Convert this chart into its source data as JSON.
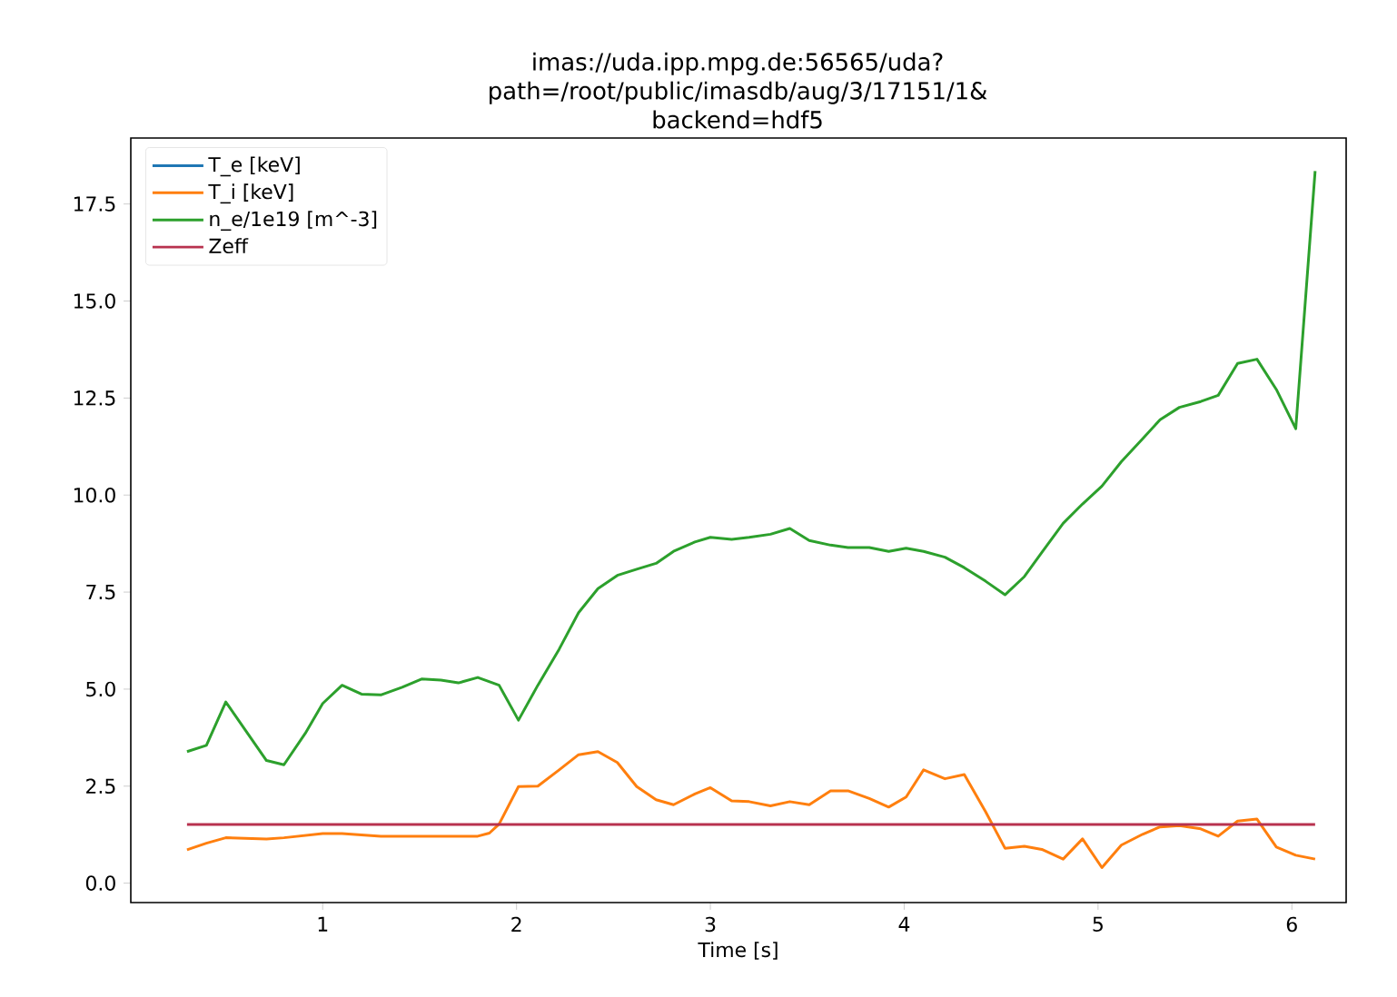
{
  "chart_data": {
    "type": "line",
    "title": "imas://uda.ipp.mpg.de:56565/uda?\npath=/root/public/imasdb/aug/3/17151/1&\nbackend=hdf5",
    "xlabel": "Time [s]",
    "xlim": [
      0.01,
      6.28
    ],
    "xticks": [
      1,
      2,
      3,
      4,
      5,
      6
    ],
    "ylim": [
      -0.5,
      19.2
    ],
    "yticks": [
      {
        "value": 0,
        "label": "0.0"
      },
      {
        "value": 2.5,
        "label": "2.5"
      },
      {
        "value": 5,
        "label": "5.0"
      },
      {
        "value": 7.5,
        "label": "7.5"
      },
      {
        "value": 10,
        "label": "10.0"
      },
      {
        "value": 12.5,
        "label": "12.5"
      },
      {
        "value": 15,
        "label": "15.0"
      },
      {
        "value": 17.5,
        "label": "17.5"
      }
    ],
    "legend": "top left",
    "grid": false,
    "line_style": "solid",
    "series": [
      {
        "name": "T_e [keV]",
        "color": "#1f77b4",
        "values": [
          null
        ]
      },
      {
        "name": "T_i [keV]",
        "color": "#ff7f0e",
        "x": [
          0.3,
          0.4,
          0.5,
          0.71,
          0.8,
          1.0,
          1.1,
          1.3,
          1.51,
          1.8,
          1.86,
          1.91,
          2.01,
          2.11,
          2.22,
          2.32,
          2.42,
          2.52,
          2.62,
          2.72,
          2.81,
          2.92,
          3.0,
          3.11,
          3.2,
          3.31,
          3.41,
          3.51,
          3.62,
          3.71,
          3.82,
          3.92,
          4.01,
          4.1,
          4.21,
          4.31,
          4.42,
          4.52,
          4.62,
          4.71,
          4.82,
          4.92,
          5.02,
          5.12,
          5.23,
          5.32,
          5.42,
          5.53,
          5.62,
          5.72,
          5.82,
          5.92,
          6.02,
          6.12
        ],
        "values": [
          0.86,
          1.03,
          1.17,
          1.14,
          1.17,
          1.28,
          1.28,
          1.21,
          1.21,
          1.21,
          1.29,
          1.52,
          2.49,
          2.5,
          2.92,
          3.31,
          3.39,
          3.11,
          2.49,
          2.15,
          2.02,
          2.3,
          2.46,
          2.12,
          2.1,
          1.99,
          2.1,
          2.02,
          2.38,
          2.38,
          2.18,
          1.96,
          2.22,
          2.92,
          2.69,
          2.8,
          1.84,
          0.9,
          0.95,
          0.87,
          0.62,
          1.14,
          0.4,
          0.98,
          1.26,
          1.45,
          1.48,
          1.4,
          1.21,
          1.6,
          1.65,
          0.93,
          0.72,
          0.62
        ]
      },
      {
        "name": "n_e/1e19 [m^-3]",
        "color": "#2ca02c",
        "x": [
          0.3,
          0.4,
          0.5,
          0.71,
          0.8,
          0.91,
          1.0,
          1.1,
          1.2,
          1.3,
          1.41,
          1.51,
          1.61,
          1.7,
          1.8,
          1.91,
          2.01,
          2.11,
          2.22,
          2.32,
          2.42,
          2.52,
          2.62,
          2.72,
          2.81,
          2.92,
          3.0,
          3.11,
          3.2,
          3.31,
          3.41,
          3.51,
          3.62,
          3.71,
          3.82,
          3.92,
          4.01,
          4.1,
          4.21,
          4.31,
          4.42,
          4.52,
          4.62,
          4.71,
          4.82,
          4.92,
          5.02,
          5.12,
          5.23,
          5.32,
          5.42,
          5.53,
          5.62,
          5.72,
          5.82,
          5.92,
          6.02,
          6.12
        ],
        "values": [
          3.39,
          3.55,
          4.67,
          3.16,
          3.05,
          3.86,
          4.63,
          5.1,
          4.87,
          4.85,
          5.05,
          5.26,
          5.23,
          5.16,
          5.3,
          5.1,
          4.2,
          5.1,
          6.03,
          6.97,
          7.59,
          7.93,
          8.09,
          8.24,
          8.55,
          8.79,
          8.91,
          8.86,
          8.91,
          8.99,
          9.14,
          8.83,
          8.71,
          8.65,
          8.65,
          8.55,
          8.63,
          8.55,
          8.4,
          8.13,
          7.78,
          7.43,
          7.9,
          8.52,
          9.27,
          9.77,
          10.23,
          10.86,
          11.45,
          11.94,
          12.26,
          12.41,
          12.57,
          13.39,
          13.5,
          12.72,
          11.71,
          18.35
        ]
      },
      {
        "name": "Zeff",
        "color": "#b8324f",
        "x": [
          0.3,
          6.12
        ],
        "values": [
          1.51,
          1.51
        ]
      }
    ]
  }
}
